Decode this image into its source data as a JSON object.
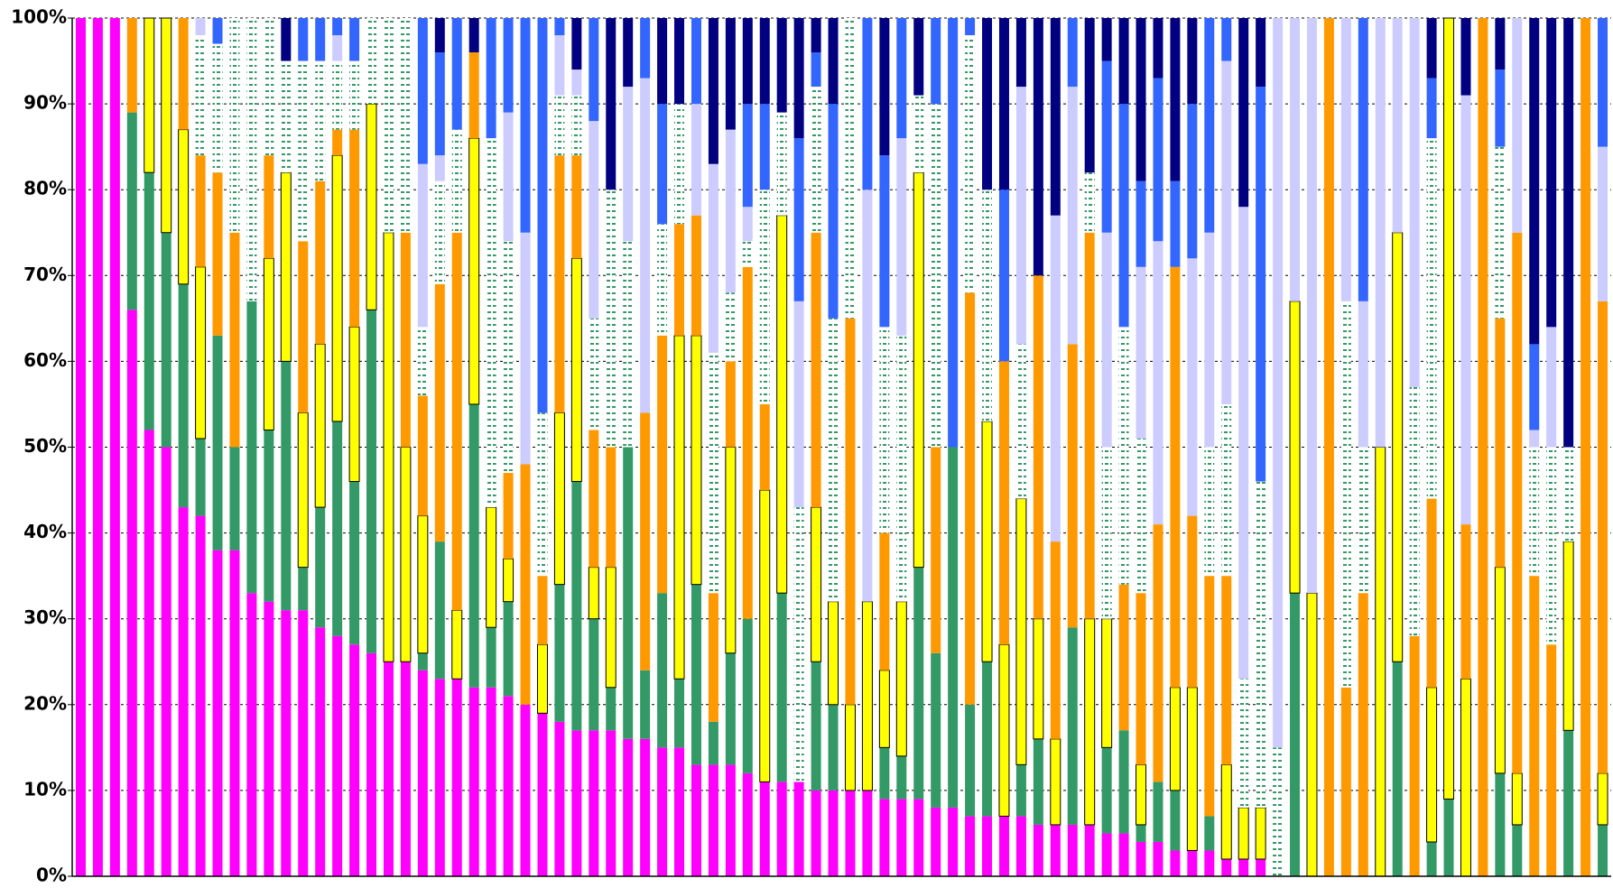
{
  "chart_data": {
    "type": "stacked_bar_percent",
    "ylim": [
      0,
      100
    ],
    "yticks": [
      {
        "value": 0,
        "label": "0%"
      },
      {
        "value": 10,
        "label": "10%"
      },
      {
        "value": 20,
        "label": "20%"
      },
      {
        "value": 30,
        "label": "30%"
      },
      {
        "value": 40,
        "label": "40%"
      },
      {
        "value": 50,
        "label": "50%"
      },
      {
        "value": 60,
        "label": "60%"
      },
      {
        "value": 70,
        "label": "70%"
      },
      {
        "value": 80,
        "label": "80%"
      },
      {
        "value": 90,
        "label": "90%"
      },
      {
        "value": 100,
        "label": "100%"
      }
    ],
    "grid": true,
    "series": [
      {
        "color": "#ff00ff",
        "values": [
          100,
          100,
          100,
          66,
          52,
          50,
          43,
          42,
          38,
          38,
          33,
          32,
          31,
          31,
          29,
          28,
          27,
          26,
          25,
          25,
          24,
          23,
          23,
          22,
          22,
          21,
          20,
          19,
          18,
          17,
          17,
          17,
          16,
          16,
          15,
          15,
          13,
          13,
          13,
          12,
          11,
          11,
          11,
          10,
          10,
          10,
          10,
          9,
          9,
          9,
          8,
          8,
          7,
          7,
          7,
          7,
          6,
          6,
          6,
          6,
          5,
          5,
          4,
          4,
          3,
          3,
          3,
          2,
          2,
          2,
          0,
          0,
          0,
          0,
          0,
          0,
          0,
          0,
          0,
          0,
          0,
          0,
          0,
          0,
          0,
          0,
          0,
          0,
          0,
          0
        ]
      },
      {
        "color": "#339966",
        "values": [
          0,
          0,
          0,
          23,
          30,
          25,
          26,
          9,
          25,
          12,
          34,
          20,
          29,
          5,
          14,
          25,
          19,
          40,
          0,
          0,
          2,
          16,
          0,
          33,
          7,
          11,
          0,
          0,
          16,
          29,
          13,
          5,
          34,
          8,
          18,
          8,
          21,
          5,
          13,
          18,
          0,
          22,
          0,
          15,
          10,
          0,
          0,
          6,
          5,
          27,
          18,
          42,
          13,
          18,
          0,
          6,
          10,
          0,
          23,
          0,
          10,
          12,
          2,
          7,
          7,
          0,
          4,
          0,
          0,
          0,
          0,
          33,
          0,
          0,
          0,
          0,
          0,
          25,
          0,
          4,
          9,
          0,
          0,
          12,
          6,
          0,
          0,
          17,
          0,
          6
        ]
      },
      {
        "color": "#ffff00",
        "outline": "#000000",
        "values": [
          0,
          0,
          0,
          0,
          18,
          25,
          18,
          20,
          0,
          0,
          0,
          20,
          22,
          18,
          19,
          31,
          18,
          24,
          50,
          25,
          16,
          0,
          8,
          31,
          14,
          5,
          0,
          8,
          20,
          26,
          6,
          14,
          0,
          0,
          0,
          40,
          29,
          0,
          24,
          0,
          34,
          44,
          0,
          18,
          12,
          10,
          22,
          9,
          18,
          46,
          0,
          0,
          0,
          28,
          20,
          31,
          14,
          10,
          0,
          24,
          15,
          0,
          7,
          0,
          12,
          19,
          0,
          11,
          6,
          6,
          0,
          34,
          33,
          0,
          0,
          0,
          50,
          50,
          0,
          18,
          91,
          23,
          0,
          24,
          6,
          0,
          0,
          22,
          0,
          6
        ]
      },
      {
        "color": "#ff9900",
        "values": [
          0,
          0,
          0,
          11,
          0,
          0,
          13,
          13,
          19,
          25,
          0,
          12,
          0,
          20,
          19,
          3,
          23,
          0,
          0,
          25,
          14,
          30,
          44,
          10,
          0,
          10,
          28,
          8,
          30,
          12,
          16,
          14,
          0,
          30,
          30,
          13,
          14,
          15,
          10,
          41,
          10,
          0,
          0,
          32,
          0,
          45,
          0,
          16,
          0,
          0,
          24,
          0,
          48,
          0,
          33,
          0,
          40,
          23,
          33,
          45,
          0,
          17,
          20,
          30,
          49,
          20,
          28,
          22,
          0,
          0,
          0,
          0,
          0,
          100,
          22,
          33,
          0,
          0,
          28,
          22,
          0,
          18,
          100,
          29,
          63,
          35,
          27,
          0,
          100,
          55
        ]
      },
      {
        "color": "#339966",
        "hatch": "dashed",
        "values": [
          0,
          0,
          0,
          0,
          0,
          0,
          0,
          14,
          15,
          25,
          33,
          16,
          13,
          21,
          14,
          8,
          8,
          10,
          25,
          25,
          8,
          12,
          12,
          0,
          43,
          27,
          0,
          19,
          7,
          7,
          13,
          30,
          24,
          0,
          13,
          14,
          0,
          28,
          8,
          3,
          25,
          12,
          32,
          17,
          33,
          35,
          0,
          24,
          31,
          9,
          40,
          0,
          30,
          27,
          0,
          18,
          0,
          0,
          0,
          7,
          20,
          30,
          18,
          0,
          0,
          0,
          15,
          20,
          15,
          38,
          15,
          0,
          0,
          0,
          45,
          17,
          0,
          0,
          29,
          42,
          0,
          0,
          0,
          20,
          0,
          15,
          23,
          11,
          0,
          0
        ]
      },
      {
        "color": "#ccccff",
        "values": [
          0,
          0,
          0,
          0,
          0,
          0,
          0,
          2,
          0,
          0,
          0,
          0,
          0,
          0,
          0,
          3,
          0,
          0,
          0,
          0,
          19,
          3,
          0,
          0,
          0,
          15,
          27,
          0,
          7,
          3,
          23,
          0,
          18,
          39,
          0,
          0,
          13,
          22,
          19,
          4,
          0,
          0,
          24,
          0,
          0,
          0,
          48,
          0,
          23,
          0,
          0,
          0,
          0,
          0,
          0,
          30,
          0,
          38,
          30,
          0,
          25,
          0,
          20,
          33,
          0,
          30,
          25,
          40,
          55,
          0,
          85,
          33,
          67,
          0,
          33,
          17,
          50,
          25,
          43,
          0,
          0,
          50,
          0,
          0,
          25,
          2,
          14,
          0,
          0,
          18
        ]
      },
      {
        "color": "#3366ff",
        "values": [
          0,
          0,
          0,
          0,
          0,
          0,
          0,
          0,
          3,
          0,
          0,
          0,
          0,
          5,
          5,
          2,
          5,
          0,
          0,
          0,
          17,
          12,
          13,
          0,
          14,
          11,
          25,
          46,
          2,
          0,
          12,
          0,
          0,
          7,
          14,
          0,
          10,
          0,
          0,
          12,
          10,
          0,
          19,
          4,
          25,
          0,
          20,
          20,
          14,
          0,
          10,
          50,
          2,
          0,
          20,
          0,
          0,
          0,
          8,
          0,
          20,
          26,
          10,
          19,
          10,
          18,
          25,
          5,
          0,
          46,
          0,
          0,
          0,
          0,
          0,
          33,
          0,
          0,
          0,
          7,
          0,
          0,
          0,
          9,
          0,
          10,
          0,
          0,
          0,
          15
        ]
      },
      {
        "color": "#000080",
        "values": [
          0,
          0,
          0,
          0,
          0,
          0,
          0,
          0,
          0,
          0,
          0,
          0,
          5,
          0,
          0,
          0,
          0,
          0,
          0,
          0,
          0,
          4,
          0,
          4,
          0,
          0,
          0,
          0,
          0,
          6,
          0,
          20,
          8,
          0,
          10,
          10,
          0,
          17,
          13,
          10,
          10,
          11,
          14,
          4,
          10,
          0,
          0,
          16,
          0,
          9,
          0,
          0,
          0,
          20,
          20,
          8,
          30,
          23,
          0,
          18,
          5,
          10,
          19,
          7,
          19,
          10,
          0,
          0,
          22,
          8,
          0,
          0,
          0,
          0,
          0,
          0,
          0,
          0,
          0,
          7,
          0,
          9,
          0,
          6,
          0,
          38,
          36,
          50,
          0,
          0
        ]
      }
    ]
  }
}
